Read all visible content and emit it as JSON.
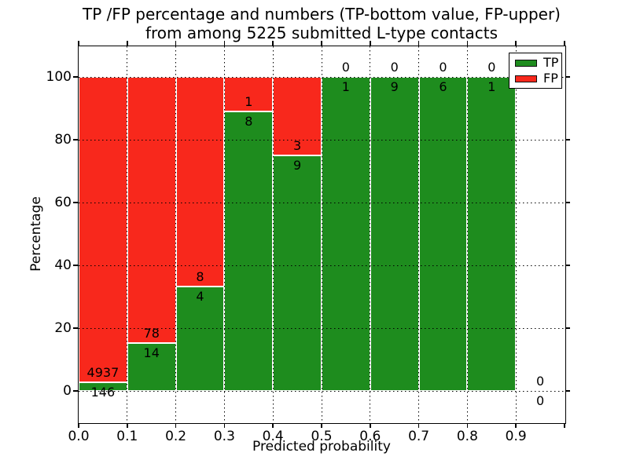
{
  "figure": {
    "title_line1": "TP /FP percentage and numbers (TP-bottom value, FP-upper)",
    "title_line2": "from among 5225 submitted L-type contacts",
    "background": "#ffffff"
  },
  "chart_data": {
    "type": "bar",
    "stacked": true,
    "normalized": "percent_of_bin_total",
    "title": "TP /FP percentage and numbers (TP-bottom value, FP-upper) from among 5225 submitted L-type contacts",
    "xlabel": "Predicted probability",
    "ylabel": "Percentage",
    "xlim": [
      0.0,
      1.0
    ],
    "ylim": [
      -10,
      110
    ],
    "bin_width": 0.1,
    "xticks": [
      "0.0",
      "0.1",
      "0.2",
      "0.3",
      "0.4",
      "0.5",
      "0.6",
      "0.7",
      "0.8",
      "0.9"
    ],
    "yticks": [
      0,
      20,
      40,
      60,
      80,
      100
    ],
    "grid": true,
    "grid_style": "dotted",
    "total_contacts": 5225,
    "categories": [
      "0.0-0.1",
      "0.1-0.2",
      "0.2-0.3",
      "0.3-0.4",
      "0.4-0.5",
      "0.5-0.6",
      "0.6-0.7",
      "0.7-0.8",
      "0.8-0.9",
      "0.9-1.0"
    ],
    "series": [
      {
        "name": "TP",
        "color": "#1e8c1e",
        "values": [
          146,
          14,
          4,
          8,
          9,
          1,
          9,
          6,
          1,
          0
        ]
      },
      {
        "name": "FP",
        "color": "#f8281c",
        "values": [
          4937,
          78,
          8,
          1,
          3,
          0,
          0,
          0,
          0,
          0
        ]
      }
    ],
    "tp_percent_by_bin": [
      2.87,
      15.22,
      33.33,
      88.89,
      75.0,
      100.0,
      100.0,
      100.0,
      100.0,
      0.0
    ],
    "legend": {
      "position": "upper-right",
      "entries": [
        {
          "label": "TP",
          "color": "#1e8c1e"
        },
        {
          "label": "FP",
          "color": "#f8281c"
        }
      ]
    }
  }
}
